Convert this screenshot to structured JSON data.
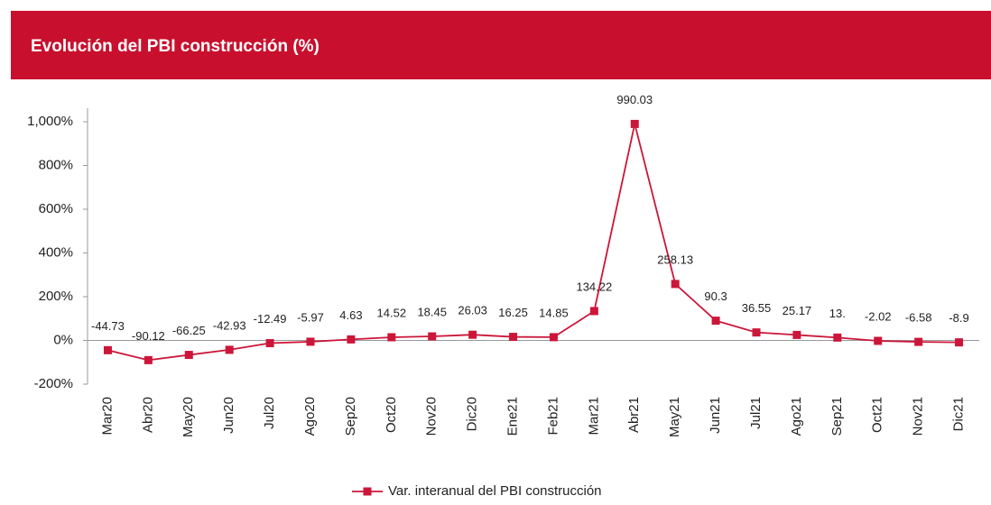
{
  "chart_data": {
    "type": "line",
    "title": "Evolución del PBI construcción (%)",
    "categories": [
      "Mar20",
      "Abr20",
      "May20",
      "Jun20",
      "Jul20",
      "Ago20",
      "Sep20",
      "Oct20",
      "Nov20",
      "Dic20",
      "Ene21",
      "Feb21",
      "Mar21",
      "Abr21",
      "May21",
      "Jun21",
      "Jul21",
      "Ago21",
      "Sep21",
      "Oct21",
      "Nov21",
      "Dic21"
    ],
    "series": [
      {
        "name": "Var. interanual del PBI construcción",
        "color": "#cc1639",
        "values": [
          -44.73,
          -90.12,
          -66.25,
          -42.93,
          -12.49,
          -5.97,
          4.63,
          14.52,
          18.45,
          26.03,
          16.25,
          14.85,
          134.22,
          990.03,
          258.13,
          90.3,
          36.55,
          25.17,
          13,
          -2.02,
          -6.58,
          -8.9
        ],
        "value_labels": [
          "-44.73",
          "-90.12",
          "-66.25",
          "-42.93",
          "-12.49",
          "-5.97",
          "4.63",
          "14.52",
          "18.45",
          "26.03",
          "16.25",
          "14.85",
          "134.22",
          "990.03",
          "258.13",
          "90.3",
          "36.55",
          "25.17",
          "13.",
          "-2.02",
          "-6.58",
          "-8.9"
        ]
      }
    ],
    "ylim": [
      -200,
      1000
    ],
    "yticks": [
      {
        "value": -200,
        "label": "-200%"
      },
      {
        "value": 0,
        "label": "0%"
      },
      {
        "value": 200,
        "label": "200%"
      },
      {
        "value": 400,
        "label": "400%"
      },
      {
        "value": 600,
        "label": "600%"
      },
      {
        "value": 800,
        "label": "800%"
      },
      {
        "value": 1000,
        "label": "1,000%"
      }
    ],
    "legend": "bottom"
  }
}
